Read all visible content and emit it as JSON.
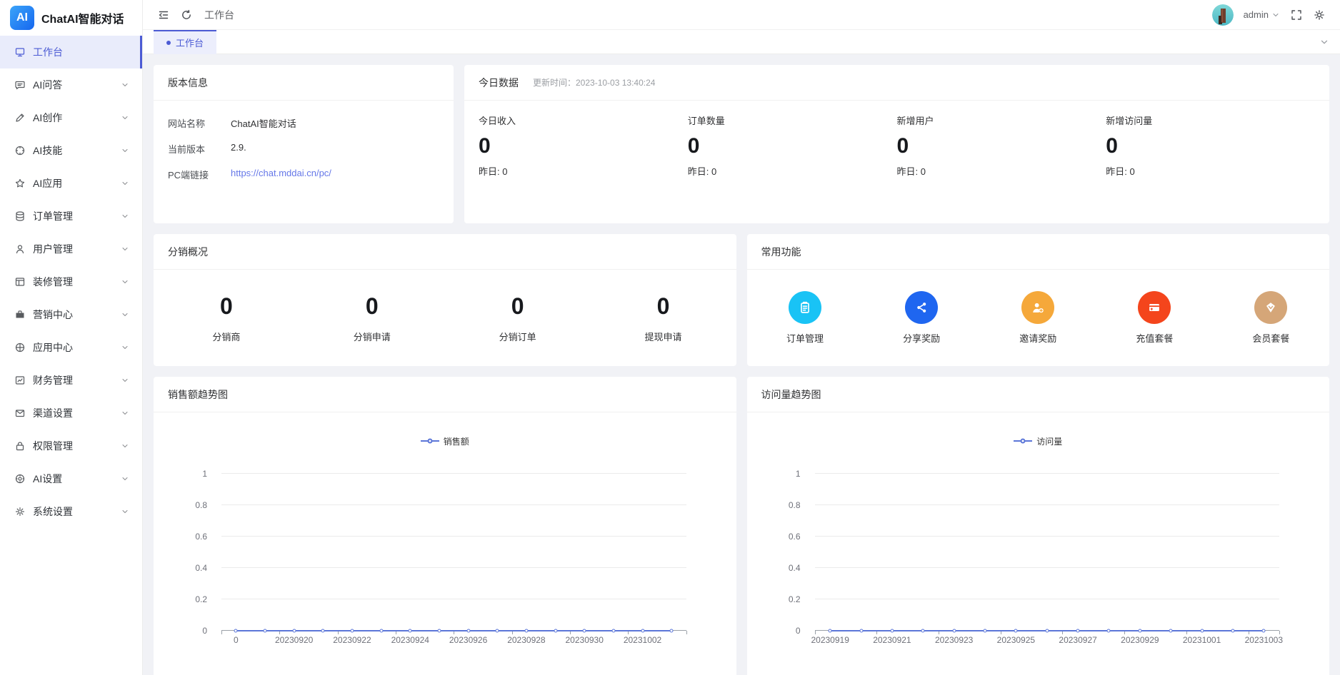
{
  "app": {
    "logo_text": "AI",
    "title": "ChatAI智能对话"
  },
  "header": {
    "breadcrumb": "工作台",
    "user": {
      "name": "admin"
    }
  },
  "tabbar": {
    "active_tab": "工作台"
  },
  "sidebar": {
    "items": [
      {
        "label": "工作台",
        "icon": "monitor-icon",
        "active": true,
        "expandable": false
      },
      {
        "label": "AI问答",
        "icon": "chat-icon",
        "active": false,
        "expandable": true
      },
      {
        "label": "AI创作",
        "icon": "pencil-icon",
        "active": false,
        "expandable": true
      },
      {
        "label": "AI技能",
        "icon": "compass-icon",
        "active": false,
        "expandable": true
      },
      {
        "label": "AI应用",
        "icon": "star-icon",
        "active": false,
        "expandable": true
      },
      {
        "label": "订单管理",
        "icon": "database-icon",
        "active": false,
        "expandable": true
      },
      {
        "label": "用户管理",
        "icon": "user-icon",
        "active": false,
        "expandable": true
      },
      {
        "label": "装修管理",
        "icon": "layout-icon",
        "active": false,
        "expandable": true
      },
      {
        "label": "营销中心",
        "icon": "briefcase-icon",
        "active": false,
        "expandable": true
      },
      {
        "label": "应用中心",
        "icon": "globe-icon",
        "active": false,
        "expandable": true
      },
      {
        "label": "财务管理",
        "icon": "finance-icon",
        "active": false,
        "expandable": true
      },
      {
        "label": "渠道设置",
        "icon": "mail-icon",
        "active": false,
        "expandable": true
      },
      {
        "label": "权限管理",
        "icon": "lock-icon",
        "active": false,
        "expandable": true
      },
      {
        "label": "AI设置",
        "icon": "target-icon",
        "active": false,
        "expandable": true
      },
      {
        "label": "系统设置",
        "icon": "gear-icon",
        "active": false,
        "expandable": true
      }
    ]
  },
  "cards": {
    "version": {
      "title": "版本信息",
      "rows": [
        {
          "label": "网站名称",
          "value": "ChatAI智能对话",
          "link": false
        },
        {
          "label": "当前版本",
          "value": "2.9.",
          "link": false
        },
        {
          "label": "PC端链接",
          "value": "https://chat.mddai.cn/pc/",
          "link": true
        }
      ]
    },
    "today": {
      "title": "今日数据",
      "update_time": "更新时间：2023-10-03 13:40:24",
      "stats": [
        {
          "label": "今日收入",
          "value": "0",
          "sub": "昨日: 0"
        },
        {
          "label": "订单数量",
          "value": "0",
          "sub": "昨日: 0"
        },
        {
          "label": "新增用户",
          "value": "0",
          "sub": "昨日: 0"
        },
        {
          "label": "新增访问量",
          "value": "0",
          "sub": "昨日: 0"
        }
      ]
    },
    "distribution": {
      "title": "分销概况",
      "stats": [
        {
          "value": "0",
          "label": "分销商"
        },
        {
          "value": "0",
          "label": "分销申请"
        },
        {
          "value": "0",
          "label": "分销订单"
        },
        {
          "value": "0",
          "label": "提现申请"
        }
      ]
    },
    "quick": {
      "title": "常用功能",
      "items": [
        {
          "label": "订单管理",
          "icon": "clipboard-icon",
          "color": "#19c3f5"
        },
        {
          "label": "分享奖励",
          "icon": "share-icon",
          "color": "#1f66f0"
        },
        {
          "label": "邀请奖励",
          "icon": "user-plus-icon",
          "color": "#f5a83a"
        },
        {
          "label": "充值套餐",
          "icon": "credit-card-icon",
          "color": "#f4451c"
        },
        {
          "label": "会员套餐",
          "icon": "vip-diamond-icon",
          "color": "#d5a678"
        }
      ]
    }
  },
  "chart_data": [
    {
      "type": "line",
      "title": "销售额趋势图",
      "legend": "销售额",
      "categories": [
        "0",
        "20230919",
        "20230920",
        "20230921",
        "20230922",
        "20230923",
        "20230924",
        "20230925",
        "20230926",
        "20230927",
        "20230928",
        "20230929",
        "20230930",
        "20231001",
        "20231002",
        "20231003"
      ],
      "values": [
        0,
        0,
        0,
        0,
        0,
        0,
        0,
        0,
        0,
        0,
        0,
        0,
        0,
        0,
        0,
        0
      ],
      "x_tick_labels": [
        "0",
        "20230920",
        "20230922",
        "20230924",
        "20230926",
        "20230928",
        "20230930",
        "20231002"
      ],
      "yticks": [
        0,
        0.2,
        0.4,
        0.6,
        0.8,
        1
      ],
      "ylim": [
        0,
        1
      ],
      "xlabel": "",
      "ylabel": "",
      "grid": true,
      "legend_position": "top-center",
      "line_color": "#5b76d8",
      "marker": "empty-circle"
    },
    {
      "type": "line",
      "title": "访问量趋势图",
      "legend": "访问量",
      "categories": [
        "20230919",
        "20230920",
        "20230921",
        "20230922",
        "20230923",
        "20230924",
        "20230925",
        "20230926",
        "20230927",
        "20230928",
        "20230929",
        "20230930",
        "20231001",
        "20231002",
        "20231003"
      ],
      "values": [
        0,
        0,
        0,
        0,
        0,
        0,
        0,
        0,
        0,
        0,
        0,
        0,
        0,
        0,
        0
      ],
      "x_tick_labels": [
        "20230919",
        "20230921",
        "20230923",
        "20230925",
        "20230927",
        "20230929",
        "20231001",
        "20231003"
      ],
      "yticks": [
        0,
        0.2,
        0.4,
        0.6,
        0.8,
        1
      ],
      "ylim": [
        0,
        1
      ],
      "xlabel": "",
      "ylabel": "",
      "grid": true,
      "legend_position": "top-center",
      "line_color": "#5b76d8",
      "marker": "empty-circle"
    }
  ]
}
